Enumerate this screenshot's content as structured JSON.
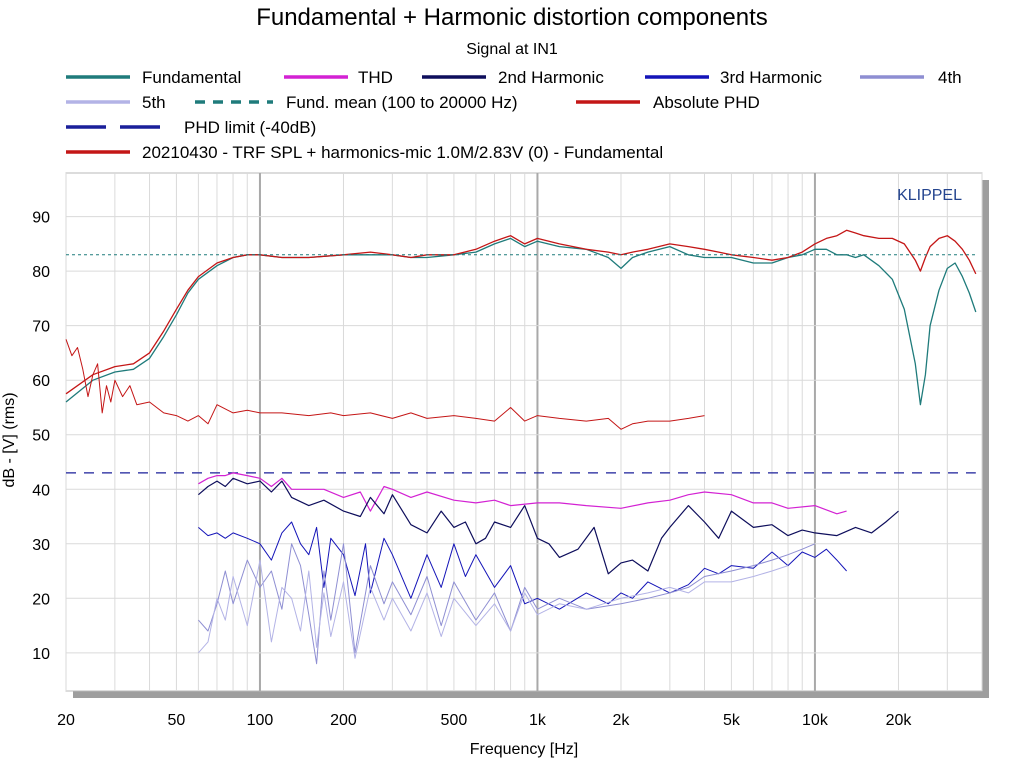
{
  "chart_data": {
    "type": "line",
    "title": "Fundamental + Harmonic distortion components",
    "subtitle": "Signal at IN1",
    "xlabel": "Frequency [Hz]",
    "ylabel": "dB - [V] (rms)",
    "xscale": "log",
    "xlim": [
      20,
      40000
    ],
    "ylim": [
      3,
      98
    ],
    "x_ticks": [
      20,
      50,
      100,
      200,
      500,
      1000,
      2000,
      5000,
      10000,
      20000
    ],
    "x_tick_labels": [
      "20",
      "50",
      "100",
      "200",
      "500",
      "1k",
      "2k",
      "5k",
      "10k",
      "20k"
    ],
    "y_ticks": [
      10,
      20,
      30,
      40,
      50,
      60,
      70,
      80,
      90
    ],
    "y_tick_labels": [
      "10",
      "20",
      "30",
      "40",
      "50",
      "60",
      "70",
      "80",
      "90"
    ],
    "grid": true,
    "watermark": "KLIPPEL",
    "legend": [
      {
        "key": "fundamental",
        "label": "Fundamental"
      },
      {
        "key": "thd",
        "label": "THD"
      },
      {
        "key": "h2",
        "label": "2nd Harmonic"
      },
      {
        "key": "h3",
        "label": "3rd Harmonic"
      },
      {
        "key": "h4",
        "label": "4th"
      },
      {
        "key": "h5",
        "label": "5th"
      },
      {
        "key": "fund_mean",
        "label": "Fund. mean (100 to 20000 Hz)"
      },
      {
        "key": "abs_phd",
        "label": "Absolute PHD"
      },
      {
        "key": "phd_limit",
        "label": "PHD limit (-40dB)"
      },
      {
        "key": "ref",
        "label": "20210430 - TRF SPL + harmonics-mic 1.0M/2.83V (0) - Fundamental"
      }
    ],
    "series": [
      {
        "key": "fundamental",
        "name": "Fundamental",
        "color": "#1f7b7b",
        "dash": "none",
        "width": 1.3,
        "x": [
          20,
          25,
          30,
          35,
          40,
          45,
          50,
          55,
          60,
          70,
          80,
          90,
          100,
          120,
          150,
          200,
          250,
          300,
          350,
          400,
          500,
          600,
          700,
          800,
          900,
          1000,
          1200,
          1500,
          1800,
          2000,
          2200,
          2500,
          3000,
          3500,
          4000,
          4500,
          5000,
          6000,
          7000,
          8000,
          9000,
          10000,
          11000,
          12000,
          13000,
          14000,
          15000,
          17000,
          19000,
          21000,
          23000,
          24000,
          25000,
          26000,
          28000,
          30000,
          32000,
          34000,
          36000,
          38000
        ],
        "y": [
          56,
          60,
          61.5,
          62,
          64,
          68,
          72,
          76,
          78.5,
          81,
          82.5,
          83,
          83,
          82.5,
          82.5,
          83,
          83,
          83,
          82.5,
          82.5,
          83,
          83.5,
          85,
          86,
          84.5,
          85.5,
          84.5,
          84,
          82.5,
          80.5,
          82.5,
          83.5,
          84.5,
          83,
          82.5,
          82.5,
          82.5,
          81.5,
          81.5,
          82.5,
          83,
          84,
          84,
          83,
          83,
          82.5,
          83,
          81,
          78.5,
          73,
          63,
          55.5,
          61,
          70,
          76.5,
          80.5,
          81.5,
          79,
          76,
          72.5
        ]
      },
      {
        "key": "ref",
        "name": "20210430 - TRF SPL + harmonics-mic 1.0M/2.83V (0) - Fundamental",
        "color": "#c41616",
        "dash": "none",
        "width": 1.3,
        "x": [
          20,
          25,
          30,
          35,
          40,
          45,
          50,
          55,
          60,
          70,
          80,
          90,
          100,
          120,
          150,
          200,
          250,
          300,
          350,
          400,
          500,
          600,
          700,
          800,
          900,
          1000,
          1200,
          1500,
          1800,
          2000,
          2200,
          2500,
          3000,
          3500,
          4000,
          4500,
          5000,
          6000,
          7000,
          8000,
          9000,
          10000,
          11000,
          12000,
          13000,
          14000,
          15000,
          17000,
          19000,
          21000,
          23000,
          24000,
          25000,
          26000,
          28000,
          30000,
          32000,
          34000,
          36000,
          38000
        ],
        "y": [
          57.5,
          61,
          62.5,
          63,
          65,
          69,
          73,
          76.5,
          79,
          81.5,
          82.5,
          83,
          83,
          82.5,
          82.5,
          83,
          83.5,
          83,
          82.5,
          83,
          83,
          84,
          85.5,
          86.5,
          85,
          86,
          85,
          84,
          83.5,
          83,
          83.5,
          84,
          85,
          84.5,
          84,
          83.5,
          83,
          82.5,
          82,
          82.5,
          83.5,
          85,
          86,
          86.5,
          87.5,
          87,
          86.5,
          86,
          86,
          85,
          82,
          80,
          82.5,
          84.5,
          86,
          86.5,
          85.5,
          84,
          82,
          79.5
        ]
      },
      {
        "key": "abs_phd",
        "name": "Absolute PHD",
        "color": "#c41616",
        "dash": "none",
        "width": 1.0,
        "x": [
          20,
          21,
          22,
          23,
          24,
          25,
          26,
          27,
          28,
          29,
          30,
          32,
          34,
          36,
          40,
          45,
          50,
          55,
          60,
          65,
          70,
          80,
          90,
          100,
          120,
          150,
          180,
          200,
          250,
          300,
          350,
          400,
          500,
          600,
          700,
          800,
          900,
          1000,
          1200,
          1500,
          1800,
          2000,
          2200,
          2500,
          3000,
          3500,
          4000
        ],
        "y": [
          67.5,
          64.5,
          66,
          62,
          57,
          61,
          63,
          54,
          59,
          56,
          60,
          57,
          59,
          55.5,
          56,
          54,
          53.5,
          52.5,
          53.5,
          52,
          55.5,
          54,
          54.5,
          54,
          54,
          53.5,
          54,
          53.5,
          54,
          53,
          54,
          53,
          53.5,
          53,
          52.5,
          55,
          52.5,
          53.5,
          53,
          52.5,
          53,
          51,
          52,
          52.5,
          52.5,
          53,
          53.5
        ]
      },
      {
        "key": "phd_limit",
        "name": "PHD limit (-40dB)",
        "color": "#1a1f9a",
        "dash": "10 8",
        "width": 1.2,
        "x": [
          20,
          38000
        ],
        "y": [
          43,
          43
        ]
      },
      {
        "key": "fund_mean",
        "name": "Fund. mean (100 to 20000 Hz)",
        "color": "#1f7b7b",
        "dash": "3 3",
        "width": 1.0,
        "x": [
          20,
          38000
        ],
        "y": [
          83,
          83
        ]
      },
      {
        "key": "thd",
        "name": "THD",
        "color": "#d322d3",
        "dash": "none",
        "width": 1.2,
        "x": [
          60,
          65,
          70,
          75,
          80,
          90,
          100,
          110,
          120,
          130,
          150,
          170,
          200,
          230,
          250,
          280,
          300,
          350,
          400,
          500,
          600,
          700,
          800,
          1000,
          1200,
          1500,
          2000,
          2500,
          3000,
          3500,
          4000,
          5000,
          6000,
          7000,
          8000,
          10000,
          12000,
          13000
        ],
        "y": [
          41,
          42,
          42.5,
          42.5,
          43,
          42.5,
          42,
          40.5,
          42,
          40,
          40,
          40,
          38.5,
          39.5,
          36,
          40.5,
          40,
          38.5,
          39.5,
          38,
          37.5,
          38,
          37,
          37.5,
          37.5,
          37,
          36.5,
          37.5,
          38,
          39,
          39.5,
          39,
          37.5,
          37.5,
          36.5,
          37,
          35.5,
          36
        ]
      },
      {
        "key": "h2",
        "name": "2nd Harmonic",
        "color": "#0e0e5c",
        "dash": "none",
        "width": 1.2,
        "x": [
          60,
          65,
          70,
          75,
          80,
          90,
          100,
          110,
          120,
          130,
          150,
          170,
          200,
          230,
          250,
          280,
          300,
          350,
          400,
          450,
          500,
          550,
          600,
          650,
          700,
          800,
          900,
          1000,
          1100,
          1200,
          1400,
          1600,
          1800,
          2000,
          2200,
          2500,
          2800,
          3000,
          3500,
          4000,
          4500,
          5000,
          6000,
          7000,
          8000,
          9000,
          10000,
          12000,
          14000,
          16000,
          18000,
          20000
        ],
        "y": [
          39,
          40.5,
          41.5,
          40.5,
          42,
          41,
          41.5,
          39.5,
          41.5,
          38.5,
          37,
          38,
          36,
          35,
          38.5,
          35.5,
          39,
          33.5,
          32,
          36,
          33,
          34,
          30,
          31,
          34,
          33,
          37,
          31,
          30,
          27.5,
          29,
          33,
          24.5,
          26.5,
          27,
          25,
          31,
          33,
          37,
          34,
          31,
          36,
          33,
          33.5,
          31.5,
          32.5,
          32,
          31.5,
          33,
          32,
          34,
          36
        ]
      },
      {
        "key": "h3",
        "name": "3rd Harmonic",
        "color": "#1414b8",
        "dash": "none",
        "width": 1.0,
        "x": [
          60,
          65,
          70,
          75,
          80,
          90,
          100,
          110,
          120,
          130,
          140,
          150,
          160,
          170,
          180,
          200,
          220,
          240,
          250,
          280,
          300,
          350,
          400,
          450,
          500,
          550,
          600,
          700,
          800,
          900,
          1000,
          1200,
          1500,
          1800,
          2000,
          2200,
          2500,
          3000,
          3500,
          4000,
          4500,
          5000,
          6000,
          7000,
          8000,
          9000,
          10000,
          11000,
          12000,
          13000
        ],
        "y": [
          33,
          31.5,
          32,
          31,
          32,
          31,
          30,
          27,
          32,
          34,
          30,
          28,
          33,
          22,
          31,
          28,
          20.5,
          30,
          21,
          31,
          28,
          20,
          28,
          22,
          30,
          24,
          28,
          22,
          26,
          19,
          20,
          18,
          21,
          19,
          21,
          20,
          23,
          21,
          22.5,
          25.5,
          24.5,
          26,
          25.5,
          28.5,
          26,
          28.5,
          27.5,
          29,
          27,
          25
        ]
      },
      {
        "key": "h4",
        "name": "4th",
        "color": "#8e8ed2",
        "dash": "none",
        "width": 1.0,
        "x": [
          60,
          65,
          70,
          75,
          80,
          90,
          100,
          110,
          120,
          130,
          140,
          150,
          160,
          170,
          180,
          200,
          220,
          250,
          280,
          300,
          350,
          400,
          450,
          500,
          600,
          700,
          800,
          900,
          1000,
          1200,
          1500,
          2000,
          2500,
          3000,
          3500,
          4000,
          5000,
          6000,
          7000,
          8000,
          9000,
          10000
        ],
        "y": [
          16,
          14,
          19,
          25,
          19,
          27,
          22,
          25,
          18,
          30,
          26,
          17,
          8,
          25,
          16,
          30,
          10,
          26,
          19,
          23,
          17,
          24,
          15,
          23,
          16,
          21,
          14,
          22,
          18,
          20,
          18,
          19,
          20,
          21,
          22,
          24,
          25,
          26,
          27,
          28,
          29,
          30
        ]
      },
      {
        "key": "h5",
        "name": "5th",
        "color": "#b3b3e6",
        "dash": "none",
        "width": 1.0,
        "x": [
          60,
          65,
          70,
          75,
          80,
          90,
          100,
          110,
          120,
          130,
          140,
          150,
          160,
          170,
          180,
          200,
          220,
          250,
          280,
          300,
          350,
          400,
          450,
          500,
          600,
          700,
          800,
          900,
          1000,
          1200,
          1500,
          2000,
          2500,
          3000,
          3500,
          4000,
          5000,
          6000,
          7000,
          8000
        ],
        "y": [
          10,
          12,
          20,
          16,
          24,
          15,
          27,
          12,
          22,
          20,
          14,
          25,
          11,
          21,
          13,
          23,
          9,
          22,
          16,
          20,
          14,
          21,
          13,
          20,
          15,
          19,
          14,
          21,
          17,
          19,
          18,
          20,
          21,
          22,
          21,
          23,
          23,
          24,
          25,
          26
        ]
      }
    ]
  }
}
